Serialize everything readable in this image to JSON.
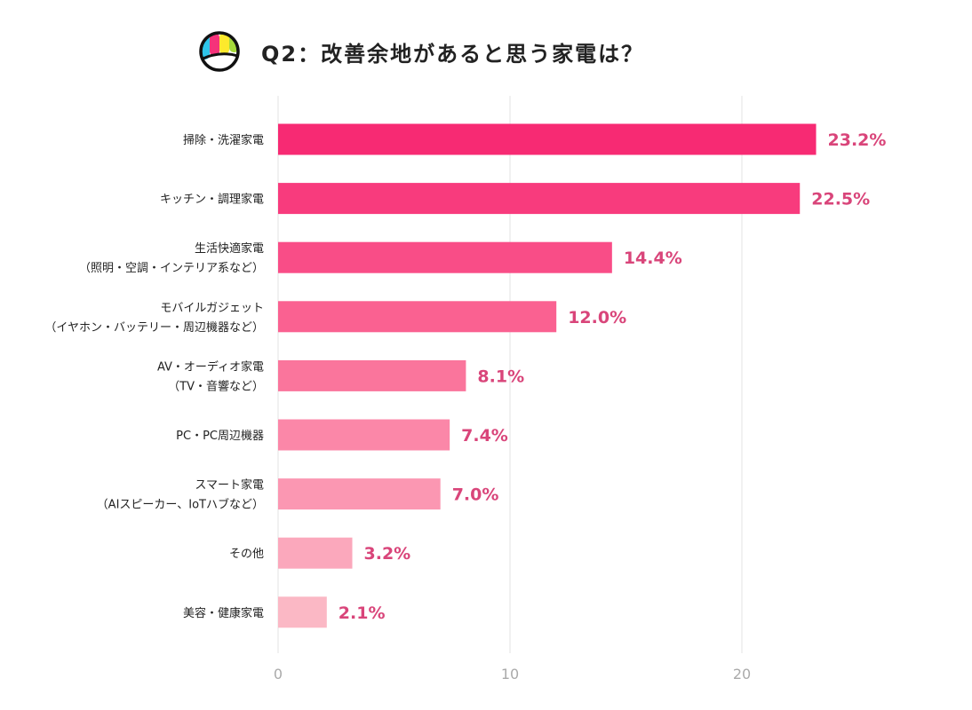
{
  "title": "Q2：改善余地があると思う家電は？",
  "logo": {
    "colors": [
      "#2ec5ea",
      "#f5327a",
      "#fde92c",
      "#a5d93a"
    ]
  },
  "chart_data": {
    "type": "bar",
    "orientation": "horizontal",
    "title": "Q2：改善余地があると思う家電は？",
    "categories": [
      [
        "掃除・洗濯家電"
      ],
      [
        "キッチン・調理家電"
      ],
      [
        "生活快適家電",
        "（照明・空調・インテリア系など）"
      ],
      [
        "モバイルガジェット",
        "（イヤホン・バッテリー・周辺機器など）"
      ],
      [
        "AV・オーディオ家電",
        "（TV・音響など）"
      ],
      [
        "PC・PC周辺機器"
      ],
      [
        "スマート家電",
        "（AIスピーカー、IoTハブなど）"
      ],
      [
        "その他"
      ],
      [
        "美容・健康家電"
      ]
    ],
    "values": [
      23.2,
      22.5,
      14.4,
      12.0,
      8.1,
      7.4,
      7.0,
      3.2,
      2.1
    ],
    "value_labels": [
      "23.2%",
      "22.5%",
      "14.4%",
      "12.0%",
      "8.1%",
      "7.4%",
      "7.0%",
      "3.2%",
      "2.1%"
    ],
    "colors": [
      "#f72a73",
      "#f83b7d",
      "#f94d87",
      "#fa6191",
      "#fa759c",
      "#fb87a8",
      "#fb97b2",
      "#fba8bc",
      "#fbb8c5"
    ],
    "xticks": [
      0,
      10,
      20
    ],
    "xlim": [
      0,
      30
    ],
    "grid": true,
    "label_color": "#d9457a"
  }
}
